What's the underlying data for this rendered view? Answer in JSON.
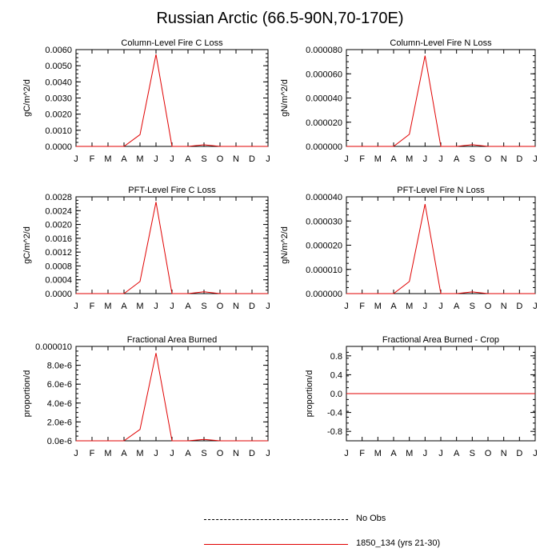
{
  "figure": {
    "title": "Russian Arctic (66.5-90N,70-170E)"
  },
  "chart_data": [
    {
      "type": "line",
      "title": "Column-Level Fire C Loss",
      "ylabel": "gC/m^2/d",
      "xlabel": "",
      "x": [
        "J",
        "F",
        "M",
        "A",
        "M",
        "J",
        "J",
        "A",
        "S",
        "O",
        "N",
        "D",
        "J"
      ],
      "ylim": [
        0,
        0.006
      ],
      "yticks": [
        "0.0000",
        "0.0010",
        "0.0020",
        "0.0030",
        "0.0040",
        "0.0050",
        "0.0060"
      ],
      "series": [
        {
          "name": "1850_134 (yrs 21-30)",
          "color": "#e00000",
          "values": [
            0,
            0,
            0,
            0,
            0.00073,
            0.0057,
            0,
            0,
            0.0001,
            0,
            0,
            0,
            0
          ]
        }
      ]
    },
    {
      "type": "line",
      "title": "Column-Level Fire N Loss",
      "ylabel": "gN/m^2/d",
      "xlabel": "",
      "x": [
        "J",
        "F",
        "M",
        "A",
        "M",
        "J",
        "J",
        "A",
        "S",
        "O",
        "N",
        "D",
        "J"
      ],
      "ylim": [
        0,
        8e-05
      ],
      "yticks": [
        "0.000000",
        "0.000020",
        "0.000040",
        "0.000060",
        "0.000080"
      ],
      "series": [
        {
          "name": "1850_134 (yrs 21-30)",
          "color": "#e00000",
          "values": [
            0,
            0,
            0,
            0,
            1e-05,
            7.5e-05,
            0,
            0,
            1.4e-06,
            0,
            0,
            0,
            0
          ]
        }
      ]
    },
    {
      "type": "line",
      "title": "PFT-Level Fire C Loss",
      "ylabel": "gC/m^2/d",
      "xlabel": "",
      "x": [
        "J",
        "F",
        "M",
        "A",
        "M",
        "J",
        "J",
        "A",
        "S",
        "O",
        "N",
        "D",
        "J"
      ],
      "ylim": [
        0,
        0.0028
      ],
      "yticks": [
        "0.0000",
        "0.0004",
        "0.0008",
        "0.0012",
        "0.0016",
        "0.0020",
        "0.0024",
        "0.0028"
      ],
      "series": [
        {
          "name": "1850_134 (yrs 21-30)",
          "color": "#e00000",
          "values": [
            0,
            0,
            0,
            0,
            0.00035,
            0.00265,
            0,
            0,
            5e-05,
            0,
            0,
            0,
            0
          ]
        }
      ]
    },
    {
      "type": "line",
      "title": "PFT-Level Fire N Loss",
      "ylabel": "gN/m^2/d",
      "xlabel": "",
      "x": [
        "J",
        "F",
        "M",
        "A",
        "M",
        "J",
        "J",
        "A",
        "S",
        "O",
        "N",
        "D",
        "J"
      ],
      "ylim": [
        0,
        4e-05
      ],
      "yticks": [
        "0.000000",
        "0.000010",
        "0.000020",
        "0.000030",
        "0.000040"
      ],
      "series": [
        {
          "name": "1850_134 (yrs 21-30)",
          "color": "#e00000",
          "values": [
            0,
            0,
            0,
            0,
            5e-06,
            3.7e-05,
            0,
            0,
            7e-07,
            0,
            0,
            0,
            0
          ]
        }
      ]
    },
    {
      "type": "line",
      "title": "Fractional Area Burned",
      "ylabel": "proportion/d",
      "xlabel": "",
      "x": [
        "J",
        "F",
        "M",
        "A",
        "M",
        "J",
        "J",
        "A",
        "S",
        "O",
        "N",
        "D",
        "J"
      ],
      "ylim": [
        0,
        1e-05
      ],
      "yticks": [
        "0.0e-6",
        "2.0e-6",
        "4.0e-6",
        "6.0e-6",
        "8.0e-6",
        "0.000010"
      ],
      "series": [
        {
          "name": "1850_134 (yrs 21-30)",
          "color": "#e00000",
          "values": [
            0,
            0,
            0,
            0,
            1.2e-06,
            9.3e-06,
            0,
            0,
            1.5e-07,
            0,
            0,
            0,
            0
          ]
        }
      ]
    },
    {
      "type": "line",
      "title": "Fractional Area Burned - Crop",
      "ylabel": "proportion/d",
      "xlabel": "",
      "x": [
        "J",
        "F",
        "M",
        "A",
        "M",
        "J",
        "J",
        "A",
        "S",
        "O",
        "N",
        "D",
        "J"
      ],
      "ylim": [
        -1,
        1
      ],
      "yticks": [
        "-0.8",
        "-0.4",
        "0.0",
        "0.4",
        "0.8"
      ],
      "ytick_values": [
        -0.8,
        -0.4,
        0,
        0.4,
        0.8
      ],
      "series": [
        {
          "name": "1850_134 (yrs 21-30)",
          "color": "#e00000",
          "values": [
            0,
            0,
            0,
            0,
            0,
            0,
            0,
            0,
            0,
            0,
            0,
            0,
            0
          ]
        }
      ]
    }
  ],
  "legend": {
    "entries": [
      {
        "label": "No Obs",
        "style": "dashed",
        "color": "#000000"
      },
      {
        "label": "1850_134 (yrs 21-30)",
        "style": "solid",
        "color": "#e00000"
      }
    ]
  }
}
